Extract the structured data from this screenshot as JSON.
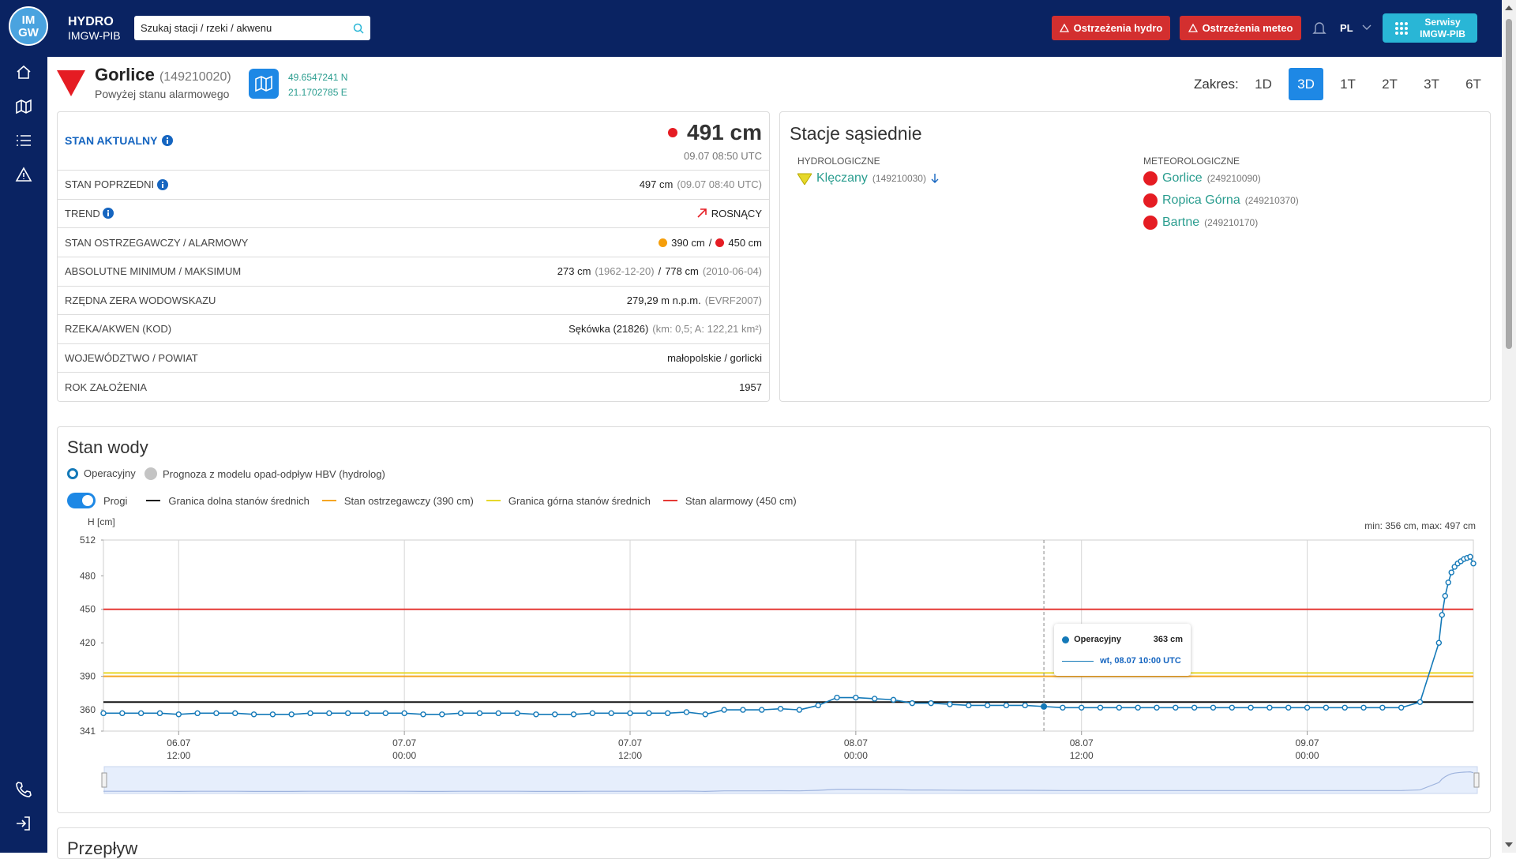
{
  "header": {
    "logo": [
      "IM",
      "GW"
    ],
    "brand_line1": "HYDRO",
    "brand_line2": "IMGW-PIB",
    "search_placeholder": "Szukaj stacji / rzeki / akwenu",
    "warn_hydro": "Ostrzeżenia hydro",
    "warn_meteo": "Ostrzeżenia meteo",
    "lang": "PL",
    "services_line1": "Serwisy",
    "services_line2": "IMGW-PIB"
  },
  "station": {
    "name": "Gorlice",
    "code": "(149210020)",
    "status": "Powyżej stanu alarmowego",
    "lat": "49.6547241 N",
    "lon": "21.1702785 E"
  },
  "range": {
    "label": "Zakres:",
    "options": [
      "1D",
      "3D",
      "1T",
      "2T",
      "3T",
      "6T"
    ],
    "active": "3D"
  },
  "info": {
    "current_label": "STAN AKTUALNY",
    "current_value": "491 cm",
    "current_time": "09.07 08:50 UTC",
    "rows": [
      {
        "label": "STAN POPRZEDNI",
        "value": "497 cm",
        "note": "(09.07 08:40 UTC)"
      },
      {
        "label": "TREND",
        "value": "ROSNĄCY"
      },
      {
        "label": "STAN OSTRZEGAWCZY / ALARMOWY",
        "value": "390 cm",
        "sep": "/",
        "value2": "450 cm"
      },
      {
        "label": "ABSOLUTNE MINIMUM / MAKSIMUM",
        "value": "273 cm",
        "note": "(1962-12-20)",
        "sep": "/",
        "value2": "778 cm",
        "note2": "(2010-06-04)"
      },
      {
        "label": "RZĘDNA ZERA WODOWSKAZU",
        "value": "279,29 m n.p.m.",
        "note": "(EVRF2007)"
      },
      {
        "label": "RZEKA/AKWEN (KOD)",
        "value": "Sękówka (21826)",
        "note": "(km: 0,5; A: 122,21 km²)"
      },
      {
        "label": "WOJEWÓDZTWO / POWIAT",
        "value": "małopolskie / gorlicki"
      },
      {
        "label": "ROK ZAŁOŻENIA",
        "value": "1957"
      }
    ]
  },
  "neighbors": {
    "title": "Stacje sąsiednie",
    "hydro_label": "HYDROLOGICZNE",
    "hydro": [
      {
        "name": "Klęczany",
        "code": "(149210030)"
      }
    ],
    "meteo_label": "METEOROLOGICZNE",
    "meteo": [
      {
        "name": "Gorlice",
        "code": "(249210090)"
      },
      {
        "name": "Ropica Górna",
        "code": "(249210370)"
      },
      {
        "name": "Bartne",
        "code": "(249210170)"
      }
    ]
  },
  "next_panel": {
    "title": "Przepływ"
  },
  "chart_data": {
    "type": "line",
    "title": "Stan wody",
    "y_label": "H [cm]",
    "minmax": "min: 356 cm, max: 497 cm",
    "forecast": "Prognoza z modelu opad-odpływ HBV (hydrolog)",
    "thresholds_toggle": "Progi",
    "x": [
      "06.07 08:00",
      "06.07 09:00",
      "06.07 10:00",
      "06.07 11:00",
      "06.07 12:00",
      "06.07 13:00",
      "06.07 14:00",
      "06.07 15:00",
      "06.07 16:00",
      "06.07 17:00",
      "06.07 18:00",
      "06.07 19:00",
      "06.07 20:00",
      "06.07 21:00",
      "06.07 22:00",
      "06.07 23:00",
      "07.07 00:00",
      "07.07 01:00",
      "07.07 02:00",
      "07.07 03:00",
      "07.07 04:00",
      "07.07 05:00",
      "07.07 06:00",
      "07.07 07:00",
      "07.07 08:00",
      "07.07 09:00",
      "07.07 10:00",
      "07.07 11:00",
      "07.07 12:00",
      "07.07 13:00",
      "07.07 14:00",
      "07.07 15:00",
      "07.07 16:00",
      "07.07 17:00",
      "07.07 18:00",
      "07.07 19:00",
      "07.07 20:00",
      "07.07 21:00",
      "07.07 22:00",
      "07.07 23:00",
      "08.07 00:00",
      "08.07 01:00",
      "08.07 02:00",
      "08.07 03:00",
      "08.07 04:00",
      "08.07 05:00",
      "08.07 06:00",
      "08.07 07:00",
      "08.07 08:00",
      "08.07 09:00",
      "08.07 10:00",
      "08.07 11:00",
      "08.07 12:00",
      "08.07 13:00",
      "08.07 14:00",
      "08.07 15:00",
      "08.07 16:00",
      "08.07 17:00",
      "08.07 18:00",
      "08.07 19:00",
      "08.07 20:00",
      "08.07 21:00",
      "08.07 22:00",
      "08.07 23:00",
      "09.07 00:00",
      "09.07 01:00",
      "09.07 02:00",
      "09.07 03:00",
      "09.07 04:00",
      "09.07 05:00",
      "09.07 06:00",
      "09.07 07:00",
      "09.07 07:10",
      "09.07 07:20",
      "09.07 07:30",
      "09.07 07:40",
      "09.07 07:50",
      "09.07 08:00",
      "09.07 08:10",
      "09.07 08:20",
      "09.07 08:30",
      "09.07 08:40",
      "09.07 08:50"
    ],
    "series": [
      {
        "name": "Operacyjny",
        "color": "#1479b8",
        "values": [
          357,
          357,
          357,
          357,
          356,
          357,
          357,
          357,
          356,
          356,
          356,
          357,
          357,
          357,
          357,
          357,
          357,
          356,
          356,
          357,
          357,
          357,
          357,
          356,
          356,
          356,
          357,
          357,
          357,
          357,
          357,
          358,
          356,
          360,
          360,
          360,
          361,
          360,
          364,
          371,
          371,
          370,
          369,
          366,
          366,
          365,
          364,
          364,
          364,
          364,
          363,
          362,
          362,
          362,
          362,
          362,
          362,
          362,
          362,
          362,
          362,
          362,
          362,
          362,
          362,
          362,
          362,
          362,
          362,
          362,
          367,
          420,
          445,
          462,
          474,
          483,
          488,
          491,
          493,
          495,
          496,
          497,
          491
        ]
      }
    ],
    "thresholds": [
      {
        "name": "Granica dolna stanów średnich",
        "color": "#111111",
        "value": 367
      },
      {
        "name": "Stan ostrzegawczy (390 cm)",
        "color": "#f5a623",
        "value": 390
      },
      {
        "name": "Granica górna stanów średnich",
        "color": "#e6d82b",
        "value": 393
      },
      {
        "name": "Stan alarmowy (450 cm)",
        "color": "#e53935",
        "value": 450
      }
    ],
    "xlim": [
      "06.07 08:00",
      "09.07 08:50"
    ],
    "xticks": [
      "06.07 12:00",
      "07.07 00:00",
      "07.07 12:00",
      "08.07 00:00",
      "08.07 12:00",
      "09.07 00:00"
    ],
    "xgrid": true,
    "ylim": [
      341,
      512
    ],
    "yticks": [
      341,
      360,
      390,
      420,
      450,
      480,
      512
    ],
    "tooltip": {
      "x": "08.07 10:00",
      "value": 363,
      "value_label": "363 cm",
      "time_label": "wt, 08.07 10:00 UTC"
    }
  }
}
